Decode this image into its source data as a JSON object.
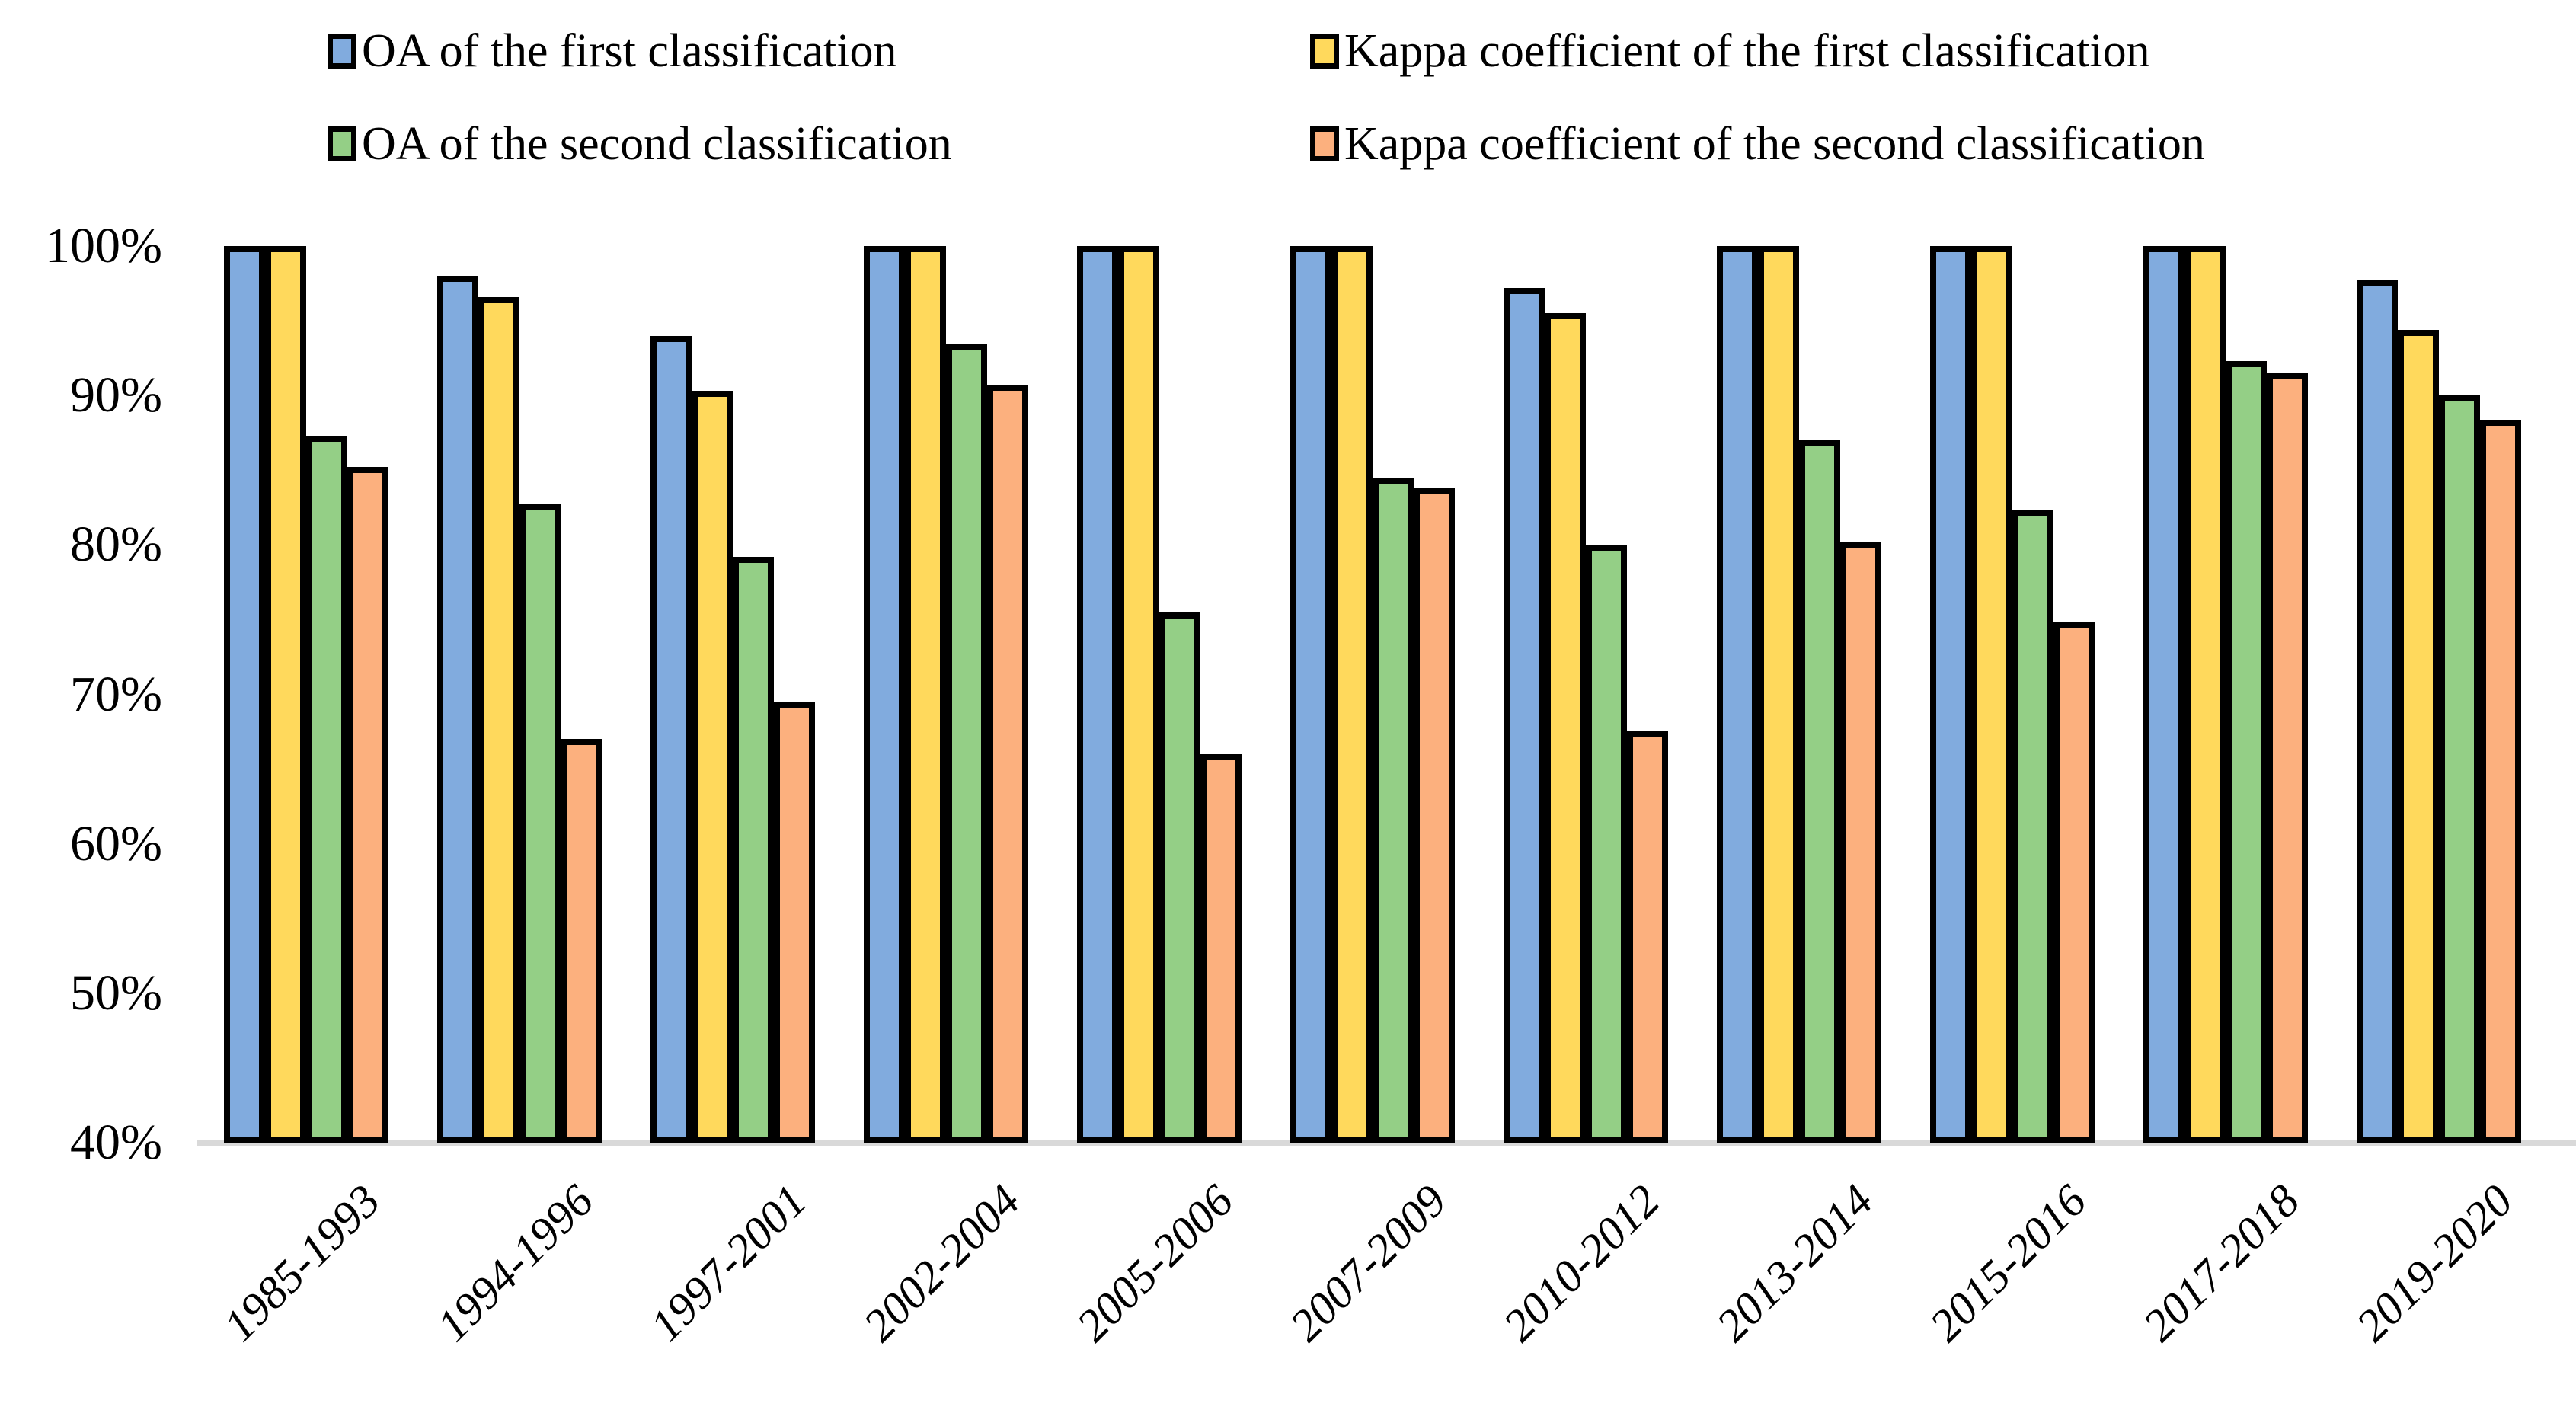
{
  "chart_data": {
    "type": "bar",
    "title": "",
    "xlabel": "",
    "ylabel": "",
    "grid": false,
    "legend_position": "top",
    "categories": [
      "1985-1993",
      "1994-1996",
      "1997-2001",
      "2002-2004",
      "2005-2006",
      "2007-2009",
      "2010-2012",
      "2013-2014",
      "2015-2016",
      "2017-2018",
      "2019-2020"
    ],
    "series": [
      {
        "name": "OA of the first classification",
        "color": "#81abde",
        "values": [
          100,
          98.0,
          94.0,
          100,
          100,
          100,
          97.2,
          100,
          100,
          100,
          97.7
        ]
      },
      {
        "name": "Kappa coefficient of the first classification",
        "color": "#ffd95c",
        "values": [
          100,
          96.6,
          90.3,
          100,
          100,
          100,
          95.5,
          100,
          100,
          100,
          94.4
        ]
      },
      {
        "name": "OA of the second classification",
        "color": "#94cf86",
        "values": [
          87.3,
          82.7,
          79.2,
          93.4,
          75.5,
          84.5,
          80.0,
          87.0,
          82.3,
          92.3,
          90.0
        ]
      },
      {
        "name": "Kappa coefficient of the second classification",
        "color": "#fcb07e",
        "values": [
          85.2,
          67.0,
          69.5,
          90.7,
          66.0,
          83.8,
          67.6,
          80.2,
          74.8,
          91.5,
          88.4
        ]
      }
    ],
    "y_axis": {
      "min": 40,
      "max": 100,
      "step": 10,
      "unit": "%",
      "tick_labels": [
        "40%",
        "50%",
        "60%",
        "70%",
        "80%",
        "90%",
        "100%"
      ]
    },
    "bar_border_color": "#000000",
    "axis_line_color": "#d9d9d9"
  }
}
